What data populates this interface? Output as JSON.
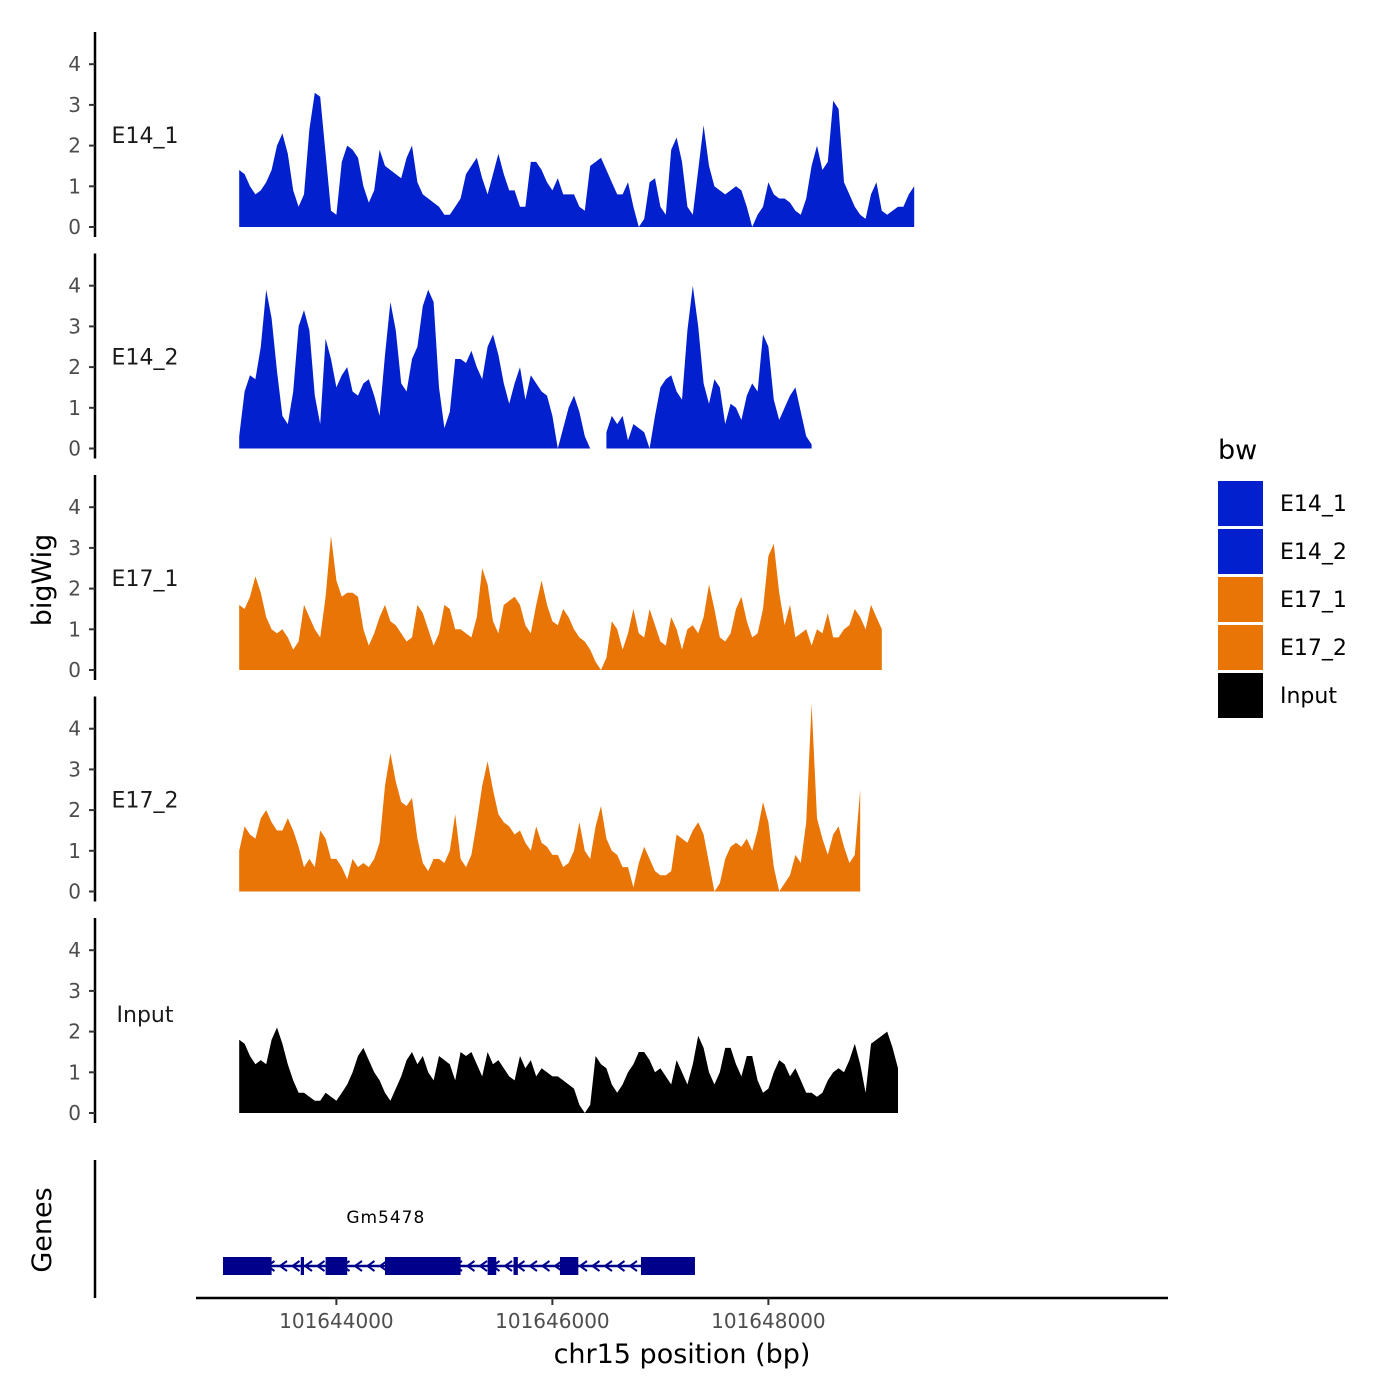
{
  "chart_data": {
    "type": "area",
    "ylabel": "bigWig",
    "ylabel_genes": "Genes",
    "xlabel": "chr15 position (bp)",
    "x_ticks": [
      101644000,
      101646000,
      101648000
    ],
    "x_tick_labels": [
      "101644000",
      "101646000",
      "101648000"
    ],
    "xlim": [
      101642700,
      101651700
    ],
    "ylim": [
      0,
      4.8
    ],
    "y_ticks": [
      0,
      1,
      2,
      3,
      4
    ],
    "y_tick_labels": [
      "0",
      "1",
      "2",
      "3",
      "4"
    ],
    "x_start": 101643100,
    "x_step": 50,
    "legend": {
      "title": "bw",
      "entries": [
        {
          "label": "E14_1",
          "color": "#0320CE"
        },
        {
          "label": "E14_2",
          "color": "#0320CE"
        },
        {
          "label": "E17_1",
          "color": "#E87506"
        },
        {
          "label": "E17_2",
          "color": "#E87506"
        },
        {
          "label": "Input",
          "color": "#000000"
        }
      ]
    },
    "series": [
      {
        "name": "E14_1",
        "color": "#0320CE",
        "values": [
          1.4,
          1.3,
          1.0,
          0.8,
          0.9,
          1.1,
          1.4,
          2.0,
          2.3,
          1.8,
          0.9,
          0.5,
          0.8,
          2.4,
          3.3,
          3.2,
          1.8,
          0.4,
          0.3,
          1.6,
          2.0,
          1.9,
          1.7,
          1.0,
          0.6,
          0.9,
          1.9,
          1.5,
          1.4,
          1.3,
          1.2,
          1.7,
          2.0,
          1.1,
          0.8,
          0.7,
          0.6,
          0.5,
          0.3,
          0.3,
          0.5,
          0.7,
          1.3,
          1.5,
          1.7,
          1.2,
          0.8,
          1.3,
          1.8,
          1.3,
          0.9,
          0.9,
          0.5,
          0.5,
          1.6,
          1.6,
          1.4,
          1.1,
          0.9,
          1.2,
          0.8,
          0.8,
          0.8,
          0.5,
          0.4,
          1.5,
          1.6,
          1.7,
          1.4,
          1.1,
          0.8,
          0.8,
          1.1,
          0.5,
          0.0,
          0.2,
          1.1,
          1.2,
          0.5,
          0.3,
          1.9,
          2.2,
          1.6,
          0.5,
          0.3,
          1.4,
          2.5,
          1.5,
          1.0,
          0.9,
          0.8,
          0.9,
          1.0,
          0.9,
          0.5,
          0.0,
          0.3,
          0.5,
          1.1,
          0.8,
          0.7,
          0.7,
          0.6,
          0.4,
          0.3,
          0.7,
          1.5,
          2.0,
          1.4,
          1.6,
          3.1,
          2.9,
          1.1,
          0.8,
          0.5,
          0.3,
          0.2,
          0.8,
          1.1,
          0.4,
          0.3,
          0.4,
          0.5,
          0.5,
          0.8,
          1.0
        ]
      },
      {
        "name": "E14_2",
        "color": "#0320CE",
        "values": [
          0.3,
          1.4,
          1.8,
          1.7,
          2.5,
          3.9,
          3.2,
          1.9,
          0.8,
          0.6,
          1.4,
          3.0,
          3.4,
          2.9,
          1.3,
          0.6,
          2.7,
          2.2,
          1.5,
          1.8,
          2.0,
          1.4,
          1.3,
          1.6,
          1.7,
          1.3,
          0.8,
          2.3,
          3.6,
          2.9,
          1.6,
          1.4,
          2.2,
          2.5,
          3.5,
          3.9,
          3.6,
          1.5,
          0.5,
          0.9,
          2.2,
          2.2,
          2.1,
          2.4,
          2.0,
          1.7,
          2.5,
          2.8,
          2.3,
          1.6,
          1.1,
          1.6,
          2.0,
          1.2,
          1.8,
          1.6,
          1.4,
          1.3,
          0.8,
          0.0,
          0.5,
          1.0,
          1.3,
          0.9,
          0.3,
          0.0,
          null,
          null,
          0.4,
          0.8,
          0.6,
          0.8,
          0.2,
          0.6,
          0.5,
          0.4,
          0.0,
          0.8,
          1.5,
          1.7,
          1.8,
          1.4,
          1.2,
          2.9,
          4.0,
          3.0,
          1.6,
          1.1,
          1.7,
          1.5,
          0.6,
          1.1,
          1.0,
          0.7,
          1.3,
          1.6,
          1.4,
          2.8,
          2.5,
          1.2,
          0.7,
          1.0,
          1.3,
          1.5,
          0.9,
          0.3,
          0.1
        ]
      },
      {
        "name": "E17_1",
        "color": "#E87506",
        "values": [
          1.6,
          1.5,
          1.8,
          2.3,
          1.9,
          1.3,
          1.0,
          0.9,
          1.0,
          0.8,
          0.5,
          0.7,
          1.6,
          1.3,
          1.0,
          0.8,
          1.8,
          3.3,
          2.2,
          1.8,
          1.9,
          1.9,
          1.8,
          1.0,
          0.6,
          0.9,
          1.3,
          1.6,
          1.2,
          1.1,
          0.9,
          0.7,
          0.8,
          1.6,
          1.4,
          1.0,
          0.6,
          0.9,
          1.6,
          1.5,
          1.0,
          1.0,
          0.9,
          0.8,
          1.3,
          2.5,
          2.1,
          1.2,
          0.9,
          1.6,
          1.7,
          1.8,
          1.6,
          1.1,
          0.9,
          1.6,
          2.2,
          1.6,
          1.2,
          1.1,
          1.5,
          1.3,
          1.0,
          0.8,
          0.7,
          0.5,
          0.2,
          0.0,
          0.3,
          1.2,
          1.0,
          0.5,
          0.9,
          1.5,
          0.9,
          0.8,
          1.5,
          1.1,
          0.7,
          0.6,
          1.3,
          1.0,
          0.5,
          1.0,
          1.1,
          0.9,
          1.3,
          2.1,
          1.5,
          0.8,
          0.7,
          0.9,
          1.5,
          1.8,
          1.2,
          0.8,
          0.9,
          1.5,
          2.8,
          3.1,
          1.9,
          1.1,
          1.6,
          0.8,
          0.9,
          1.0,
          0.6,
          1.0,
          0.9,
          1.4,
          0.8,
          0.8,
          1.0,
          1.1,
          1.5,
          1.3,
          1.0,
          1.6,
          1.3,
          1.0
        ]
      },
      {
        "name": "E17_2",
        "color": "#E87506",
        "values": [
          1.0,
          1.6,
          1.4,
          1.3,
          1.8,
          2.0,
          1.7,
          1.5,
          1.5,
          1.8,
          1.5,
          1.1,
          0.6,
          0.8,
          0.6,
          1.5,
          1.3,
          0.8,
          0.8,
          0.6,
          0.3,
          0.8,
          0.6,
          0.7,
          0.6,
          0.8,
          1.2,
          2.6,
          3.4,
          2.7,
          2.2,
          2.1,
          2.3,
          1.3,
          0.7,
          0.5,
          0.8,
          0.8,
          0.7,
          1.0,
          1.9,
          0.8,
          0.6,
          0.9,
          1.7,
          2.6,
          3.2,
          2.5,
          1.9,
          1.7,
          1.6,
          1.4,
          1.5,
          1.2,
          1.0,
          1.6,
          1.2,
          1.1,
          0.9,
          0.9,
          0.6,
          0.7,
          1.0,
          1.7,
          1.0,
          0.8,
          1.6,
          2.1,
          1.3,
          1.0,
          0.9,
          0.6,
          0.6,
          0.1,
          0.7,
          1.1,
          0.8,
          0.5,
          0.4,
          0.4,
          0.5,
          1.4,
          1.3,
          1.2,
          1.5,
          1.7,
          1.4,
          0.7,
          0.0,
          0.2,
          0.8,
          1.1,
          1.2,
          1.1,
          1.3,
          1.0,
          1.5,
          2.2,
          1.7,
          0.6,
          0.0,
          0.2,
          0.4,
          0.9,
          0.7,
          1.7,
          4.6,
          1.8,
          1.3,
          0.9,
          1.4,
          1.6,
          1.1,
          0.7,
          0.9,
          2.5
        ]
      },
      {
        "name": "Input",
        "color": "#000000",
        "values": [
          1.8,
          1.7,
          1.4,
          1.2,
          1.3,
          1.2,
          1.8,
          2.1,
          1.7,
          1.2,
          0.8,
          0.5,
          0.5,
          0.4,
          0.3,
          0.3,
          0.5,
          0.4,
          0.3,
          0.5,
          0.7,
          1.0,
          1.4,
          1.6,
          1.3,
          1.0,
          0.8,
          0.5,
          0.3,
          0.6,
          0.9,
          1.3,
          1.5,
          1.2,
          1.4,
          1.0,
          0.8,
          1.4,
          1.3,
          1.2,
          0.8,
          1.5,
          1.4,
          1.5,
          1.2,
          0.9,
          1.5,
          1.2,
          1.3,
          1.1,
          0.9,
          0.8,
          1.4,
          1.1,
          1.3,
          0.9,
          1.1,
          1.0,
          0.9,
          0.9,
          0.8,
          0.7,
          0.6,
          0.2,
          0.0,
          0.2,
          1.4,
          1.2,
          1.1,
          0.7,
          0.5,
          0.7,
          1.0,
          1.2,
          1.5,
          1.5,
          1.3,
          1.0,
          1.1,
          0.9,
          0.7,
          1.3,
          1.0,
          0.7,
          1.2,
          1.9,
          1.6,
          1.0,
          0.7,
          1.0,
          1.6,
          1.6,
          1.2,
          0.9,
          1.4,
          1.4,
          0.8,
          0.5,
          0.6,
          1.0,
          1.3,
          1.2,
          0.9,
          1.1,
          0.8,
          0.5,
          0.5,
          0.4,
          0.5,
          0.8,
          1.0,
          1.1,
          1.0,
          1.3,
          1.7,
          1.2,
          0.5,
          1.7,
          1.8,
          1.9,
          2.0,
          1.6,
          1.1
        ]
      }
    ],
    "genes": [
      {
        "name": "Gm5478",
        "start": 101642950,
        "end": 101647320,
        "strand": "-",
        "exons": [
          [
            101642950,
            101643400
          ],
          [
            101643670,
            101643700
          ],
          [
            101643900,
            101644100
          ],
          [
            101644450,
            101645150
          ],
          [
            101645400,
            101645480
          ],
          [
            101645640,
            101645680
          ],
          [
            101646070,
            101646240
          ],
          [
            101646820,
            101647320
          ]
        ]
      }
    ]
  }
}
